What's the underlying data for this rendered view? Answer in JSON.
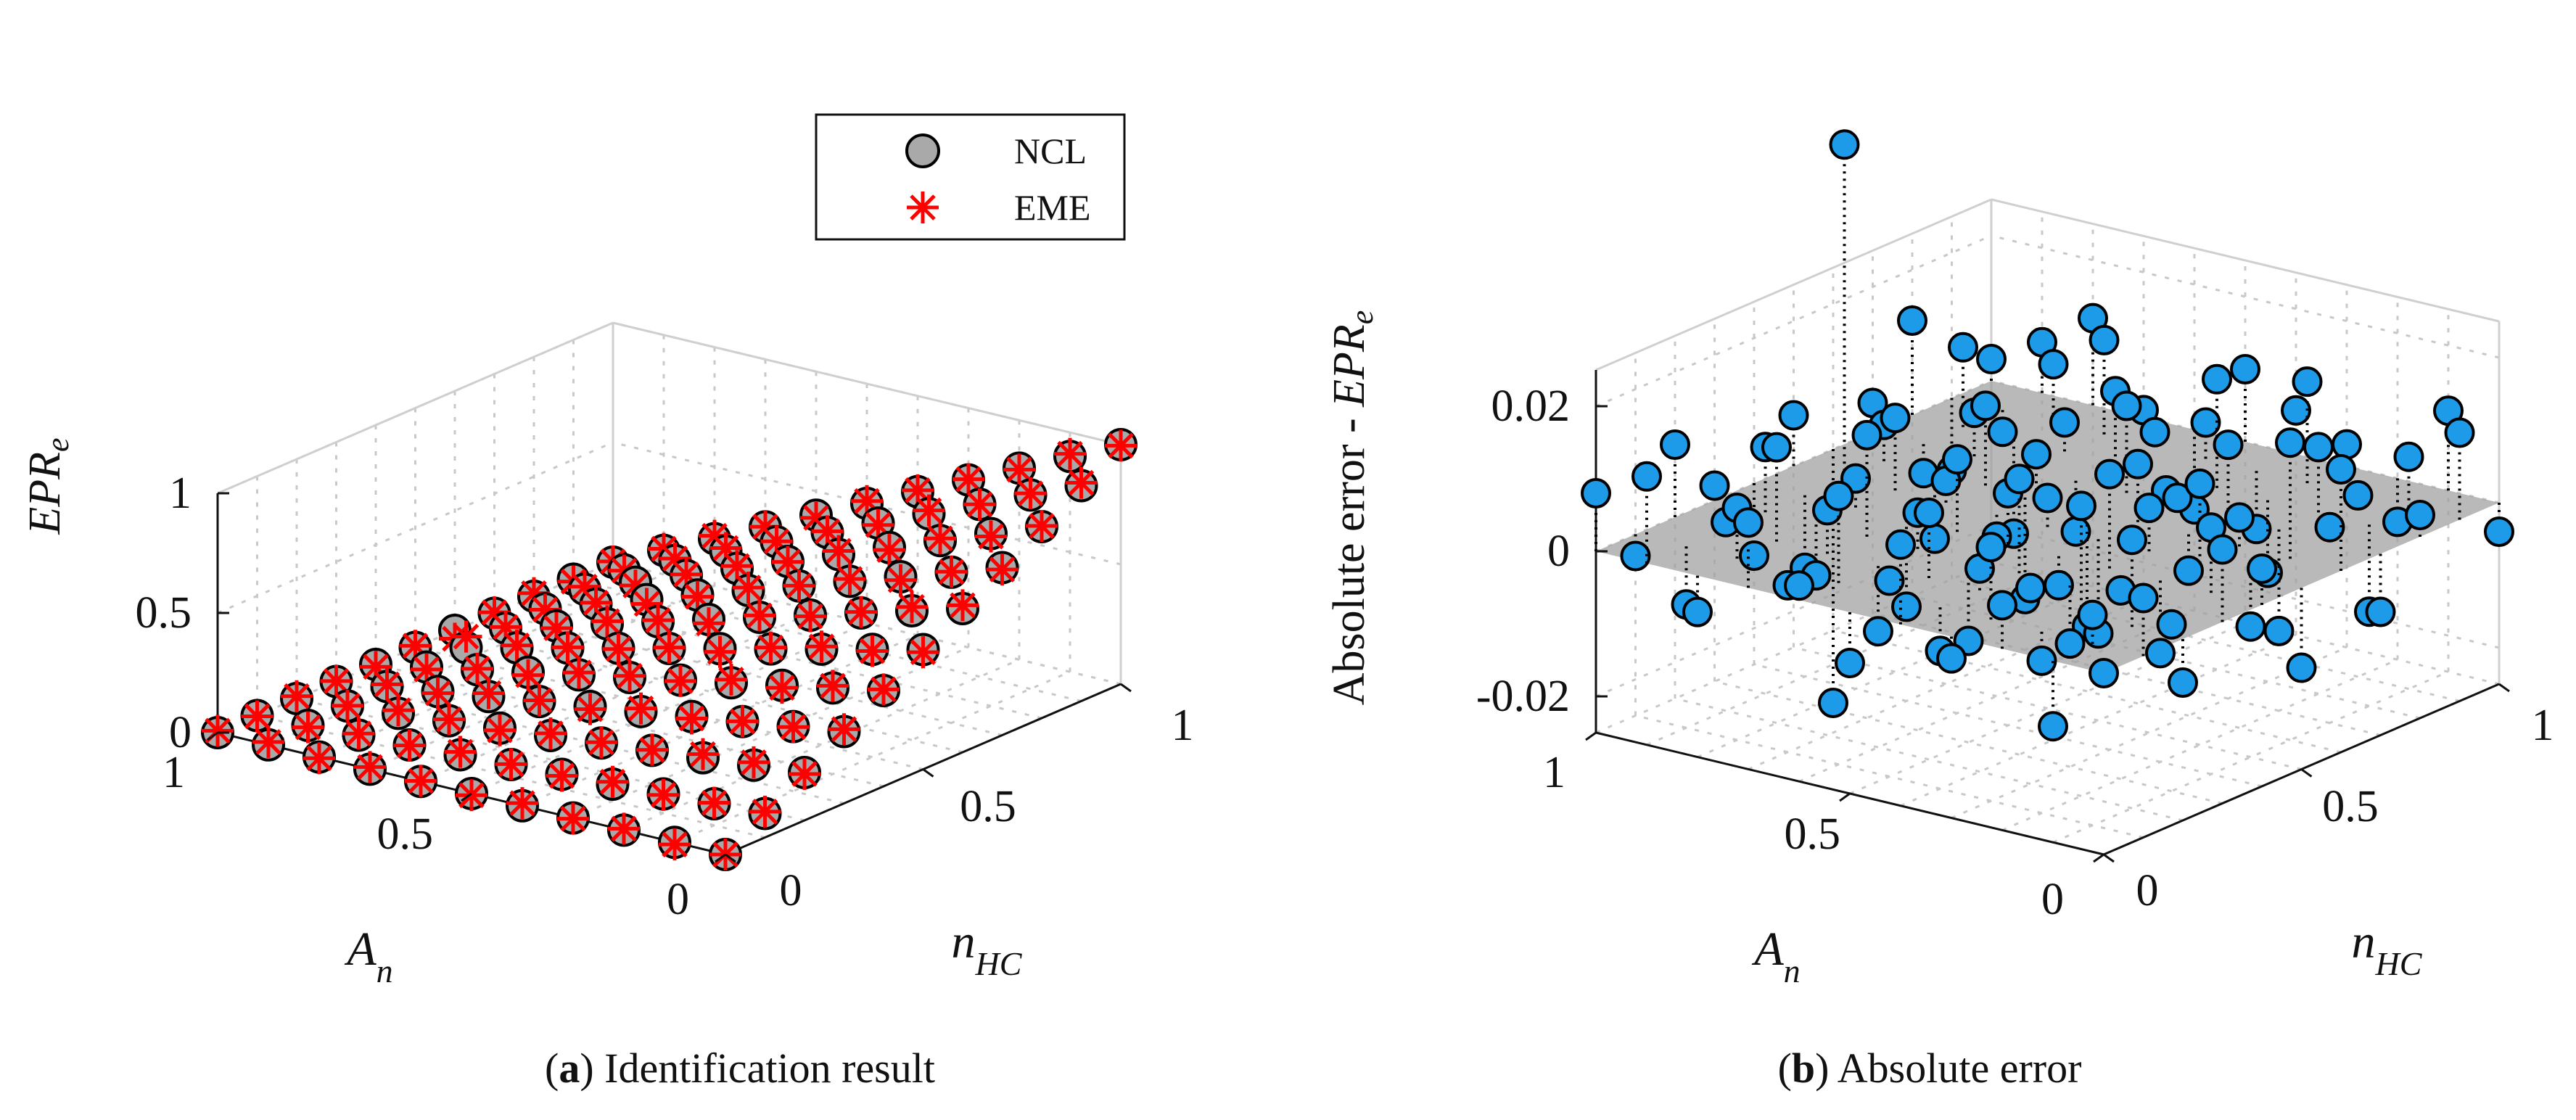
{
  "figure": {
    "panel_a": {
      "letter": "a",
      "caption": "Identification result"
    },
    "panel_b": {
      "letter": "b",
      "caption": "Absolute error"
    }
  },
  "colors": {
    "ncl_fill": "#a9a9a9",
    "eme_color": "#ff0000",
    "error_fill": "#1e9be8",
    "plane_fill": "#9e9e9e",
    "grid": "#c8c8c8",
    "axis": "#111111"
  },
  "chart_data": [
    {
      "type": "scatter3d",
      "title": "Identification result",
      "xlabel": "n_HC",
      "ylabel": "A_n",
      "zlabel": "EPR_e",
      "xlim": [
        0,
        1
      ],
      "ylim": [
        0,
        1
      ],
      "zlim": [
        0,
        1
      ],
      "x_ticks": [
        "0",
        "0.5",
        "1"
      ],
      "y_ticks": [
        "0",
        "0.5",
        "1"
      ],
      "z_ticks": [
        "0",
        "0.5",
        "1"
      ],
      "grid": true,
      "legend": [
        "NCL",
        "EME"
      ],
      "legend_position": "top-right",
      "grid_description": "11 x 11 grid: n_HC = 0, 0.1, ..., 1 and A_n = 0, 0.1, ..., 1",
      "series": [
        {
          "name": "NCL",
          "marker": "circle",
          "n_HC": [
            0,
            0.1,
            0.2,
            0.3,
            0.4,
            0.5,
            0.6,
            0.7,
            0.8,
            0.9,
            1.0
          ],
          "A_n": [
            0,
            0.1,
            0.2,
            0.3,
            0.4,
            0.5,
            0.6,
            0.7,
            0.8,
            0.9,
            1.0
          ],
          "EPR_e_rows_by_A_n": [
            [
              0.0,
              0.1,
              0.2,
              0.3,
              0.4,
              0.5,
              0.6,
              0.7,
              0.8,
              0.9,
              1.0
            ],
            [
              0.0,
              0.09,
              0.18,
              0.27,
              0.36,
              0.45,
              0.54,
              0.63,
              0.72,
              0.81,
              0.9
            ],
            [
              0.0,
              0.08,
              0.16,
              0.24,
              0.32,
              0.4,
              0.48,
              0.56,
              0.64,
              0.72,
              0.8
            ],
            [
              0.0,
              0.07,
              0.14,
              0.21,
              0.28,
              0.35,
              0.42,
              0.49,
              0.56,
              0.63,
              0.7
            ],
            [
              0.0,
              0.06,
              0.12,
              0.18,
              0.24,
              0.3,
              0.36,
              0.42,
              0.48,
              0.54,
              0.6
            ],
            [
              0.0,
              0.05,
              0.1,
              0.15,
              0.2,
              0.25,
              0.3,
              0.35,
              0.4,
              0.45,
              0.5
            ],
            [
              0.0,
              0.04,
              0.08,
              0.12,
              0.16,
              0.2,
              0.24,
              0.28,
              0.32,
              0.36,
              0.4
            ],
            [
              0.0,
              0.03,
              0.06,
              0.09,
              0.12,
              0.15,
              0.18,
              0.21,
              0.24,
              0.27,
              0.3
            ],
            [
              0.0,
              0.02,
              0.04,
              0.06,
              0.08,
              0.1,
              0.12,
              0.14,
              0.16,
              0.18,
              0.2
            ],
            [
              0.0,
              0.01,
              0.02,
              0.03,
              0.04,
              0.05,
              0.06,
              0.07,
              0.08,
              0.09,
              0.1
            ],
            [
              0.0,
              0.0,
              0.0,
              0.0,
              0.0,
              0.0,
              0.0,
              0.0,
              0.0,
              0.0,
              0.0
            ]
          ]
        },
        {
          "name": "EME",
          "marker": "asterisk",
          "note": "EME markers overlap NCL markers at the same grid points (EPR_e = NCL + absolute error)"
        }
      ]
    },
    {
      "type": "stem3d",
      "title": "Absolute error",
      "xlabel": "n_HC",
      "ylabel": "A_n",
      "zlabel": "Absolute error - EPR_e",
      "xlim": [
        0,
        1
      ],
      "ylim": [
        0,
        1
      ],
      "zlim": [
        -0.025,
        0.025
      ],
      "x_ticks": [
        "0",
        "0.5",
        "1"
      ],
      "y_ticks": [
        "0",
        "0.5",
        "1"
      ],
      "z_ticks": [
        "-0.02",
        "0",
        "0.02"
      ],
      "grid": true,
      "plane_z": 0,
      "points": [
        [
          0.0,
          0.0,
          0.0
        ],
        [
          0.1,
          0.0,
          0.008
        ],
        [
          0.2,
          0.0,
          -0.006
        ],
        [
          0.3,
          0.0,
          0.01
        ],
        [
          0.4,
          0.0,
          0.005
        ],
        [
          0.5,
          0.0,
          -0.011
        ],
        [
          0.6,
          0.0,
          0.014
        ],
        [
          0.7,
          0.0,
          -0.008
        ],
        [
          0.8,
          0.0,
          0.003
        ],
        [
          0.9,
          0.0,
          0.012
        ],
        [
          1.0,
          0.0,
          -0.004
        ],
        [
          0.0,
          0.1,
          -0.009
        ],
        [
          0.1,
          0.1,
          0.004
        ],
        [
          0.2,
          0.1,
          0.012
        ],
        [
          0.3,
          0.1,
          -0.002
        ],
        [
          0.4,
          0.1,
          0.009
        ],
        [
          0.5,
          0.1,
          -0.007
        ],
        [
          0.6,
          0.1,
          0.016
        ],
        [
          0.7,
          0.1,
          0.002
        ],
        [
          0.8,
          0.1,
          -0.012
        ],
        [
          0.9,
          0.1,
          0.007
        ],
        [
          1.0,
          0.1,
          0.011
        ],
        [
          0.0,
          0.2,
          0.006
        ],
        [
          0.1,
          0.2,
          -0.004
        ],
        [
          0.2,
          0.2,
          0.015
        ],
        [
          0.3,
          0.2,
          0.001
        ],
        [
          0.4,
          0.2,
          -0.01
        ],
        [
          0.5,
          0.2,
          0.011
        ],
        [
          0.6,
          0.2,
          0.004
        ],
        [
          0.7,
          0.2,
          -0.014
        ],
        [
          0.8,
          0.2,
          0.009
        ],
        [
          0.9,
          0.2,
          0.0
        ],
        [
          1.0,
          0.2,
          -0.006
        ],
        [
          0.0,
          0.3,
          -0.003
        ],
        [
          0.1,
          0.3,
          0.01
        ],
        [
          0.2,
          0.3,
          0.002
        ],
        [
          0.3,
          0.3,
          -0.008
        ],
        [
          0.4,
          0.3,
          0.013
        ],
        [
          0.5,
          0.3,
          0.006
        ],
        [
          0.6,
          0.3,
          -0.005
        ],
        [
          0.7,
          0.3,
          0.01
        ],
        [
          0.8,
          0.3,
          -0.01
        ],
        [
          0.9,
          0.3,
          0.014
        ],
        [
          1.0,
          0.3,
          0.003
        ],
        [
          0.0,
          0.4,
          0.011
        ],
        [
          0.1,
          0.4,
          -0.006
        ],
        [
          0.2,
          0.4,
          0.003
        ],
        [
          0.3,
          0.4,
          0.013
        ],
        [
          0.4,
          0.4,
          -0.004
        ],
        [
          0.5,
          0.4,
          -0.013
        ],
        [
          0.6,
          0.4,
          0.008
        ],
        [
          0.7,
          0.4,
          0.001
        ],
        [
          0.8,
          0.4,
          0.015
        ],
        [
          0.9,
          0.4,
          -0.008
        ],
        [
          1.0,
          0.4,
          0.006
        ],
        [
          0.0,
          0.5,
          -0.007
        ],
        [
          0.1,
          0.5,
          0.002
        ],
        [
          0.2,
          0.5,
          0.009
        ],
        [
          0.3,
          0.5,
          -0.011
        ],
        [
          0.4,
          0.5,
          0.007
        ],
        [
          0.5,
          0.5,
          0.004
        ],
        [
          0.6,
          0.5,
          -0.016
        ],
        [
          0.7,
          0.5,
          0.012
        ],
        [
          0.8,
          0.5,
          -0.002
        ],
        [
          0.9,
          0.5,
          0.005
        ],
        [
          1.0,
          0.5,
          0.01
        ],
        [
          0.0,
          0.6,
          0.002
        ],
        [
          0.1,
          0.6,
          0.012
        ],
        [
          0.2,
          0.6,
          -0.009
        ],
        [
          0.3,
          0.6,
          0.005
        ],
        [
          0.4,
          0.6,
          0.01
        ],
        [
          0.5,
          0.6,
          -0.003
        ],
        [
          0.6,
          0.6,
          0.006
        ],
        [
          0.7,
          0.6,
          -0.007
        ],
        [
          0.8,
          0.6,
          0.01
        ],
        [
          0.9,
          0.6,
          0.002
        ],
        [
          1.0,
          0.6,
          -0.011
        ],
        [
          0.0,
          0.7,
          0.009
        ],
        [
          0.1,
          0.7,
          -0.002
        ],
        [
          0.2,
          0.7,
          0.006
        ],
        [
          0.3,
          0.7,
          0.014
        ],
        [
          0.4,
          0.7,
          -0.012
        ],
        [
          0.5,
          0.7,
          0.003
        ],
        [
          0.6,
          0.7,
          0.011
        ],
        [
          0.7,
          0.7,
          -0.018
        ],
        [
          0.8,
          0.7,
          0.004
        ],
        [
          0.9,
          0.7,
          0.013
        ],
        [
          1.0,
          0.7,
          0.001
        ],
        [
          0.0,
          0.8,
          -0.005
        ],
        [
          0.1,
          0.8,
          0.007
        ],
        [
          0.2,
          0.8,
          0.013
        ],
        [
          0.3,
          0.8,
          -0.007
        ],
        [
          0.4,
          0.8,
          0.004
        ],
        [
          0.5,
          0.8,
          0.01
        ],
        [
          0.6,
          0.8,
          -0.009
        ],
        [
          0.7,
          0.8,
          0.006
        ],
        [
          0.8,
          0.8,
          -0.013
        ],
        [
          0.9,
          0.8,
          0.008
        ],
        [
          1.0,
          0.8,
          0.012
        ],
        [
          0.0,
          0.9,
          0.012
        ],
        [
          0.1,
          0.9,
          -0.008
        ],
        [
          0.2,
          0.9,
          0.001
        ],
        [
          0.3,
          0.9,
          0.009
        ],
        [
          0.4,
          0.9,
          -0.01
        ],
        [
          0.5,
          0.9,
          0.046
        ],
        [
          0.6,
          0.9,
          0.005
        ],
        [
          0.7,
          0.9,
          -0.004
        ],
        [
          0.8,
          0.9,
          0.011
        ],
        [
          0.9,
          0.9,
          -0.003
        ],
        [
          1.0,
          0.9,
          0.007
        ],
        [
          0.0,
          1.0,
          0.008
        ],
        [
          0.1,
          1.0,
          -0.003
        ],
        [
          0.2,
          1.0,
          0.01
        ],
        [
          0.3,
          1.0,
          0.002
        ],
        [
          0.4,
          1.0,
          -0.01
        ],
        [
          0.5,
          1.0,
          0.007
        ],
        [
          0.6,
          1.0,
          -0.035
        ],
        [
          0.7,
          1.0,
          0.004
        ],
        [
          0.8,
          1.0,
          0.013
        ],
        [
          0.9,
          1.0,
          -0.01
        ],
        [
          1.0,
          1.0,
          0.003
        ]
      ]
    }
  ]
}
